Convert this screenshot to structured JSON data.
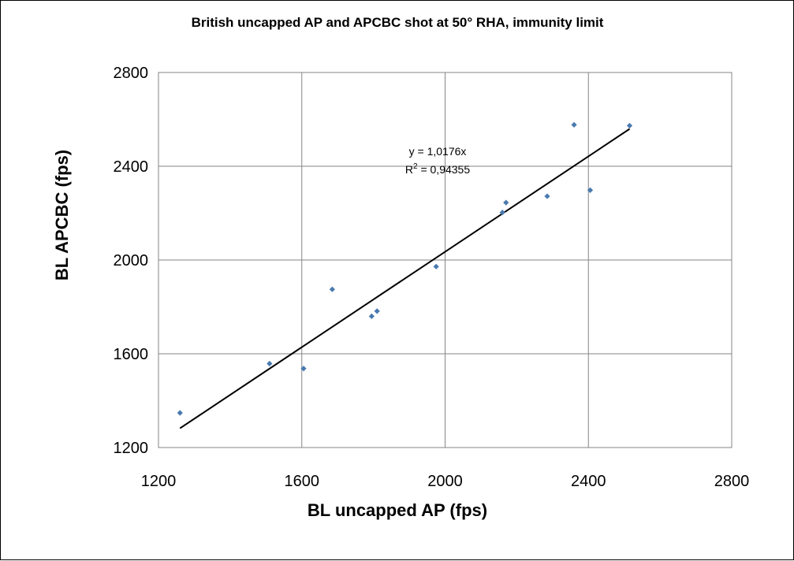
{
  "chart_data": {
    "type": "scatter",
    "title": "British uncapped AP and APCBC shot at 50° RHA, immunity limit",
    "xlabel": "BL uncapped AP (fps)",
    "ylabel": "BL APCBC (fps)",
    "xlim": [
      1200,
      2800
    ],
    "ylim": [
      1200,
      2800
    ],
    "xticks": [
      1200,
      1600,
      2000,
      2400,
      2800
    ],
    "yticks": [
      1200,
      1600,
      2000,
      2400,
      2800
    ],
    "xtick_labels": [
      "1200",
      "1600",
      "2000",
      "2400",
      "2800"
    ],
    "ytick_labels": [
      "1200",
      "1600",
      "2000",
      "2400",
      "2800"
    ],
    "grid": true,
    "legend": "none",
    "marker_color": "#4a7ab0",
    "points": [
      {
        "x": 1260,
        "y": 1348
      },
      {
        "x": 1510,
        "y": 1558
      },
      {
        "x": 1605,
        "y": 1537
      },
      {
        "x": 1685,
        "y": 1875
      },
      {
        "x": 1795,
        "y": 1760
      },
      {
        "x": 1810,
        "y": 1782
      },
      {
        "x": 1975,
        "y": 1972
      },
      {
        "x": 2160,
        "y": 2203
      },
      {
        "x": 2170,
        "y": 2245
      },
      {
        "x": 2285,
        "y": 2272
      },
      {
        "x": 2360,
        "y": 2577
      },
      {
        "x": 2405,
        "y": 2298
      },
      {
        "x": 2515,
        "y": 2573
      }
    ],
    "trendline": {
      "equation": "y = 1,0176x",
      "r2_prefix": "R",
      "r2_sup": "2",
      "r2_value": " = 0,94355",
      "slope": 1.0176,
      "x_range": [
        1260,
        2515
      ]
    }
  }
}
